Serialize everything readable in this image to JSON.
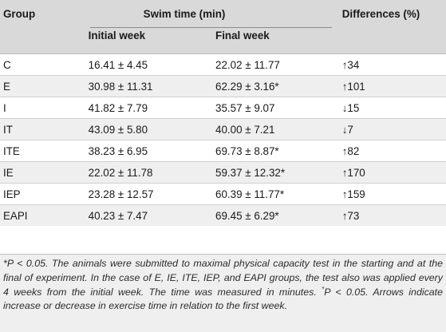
{
  "header": {
    "group": "Group",
    "swim_time": "Swim time (min)",
    "differences": "Differences (%)",
    "initial_week": "Initial week",
    "final_week": "Final week"
  },
  "rows": [
    {
      "group": "C",
      "initial": "16.41 ± 4.45",
      "final": "22.02 ± 11.77",
      "diff": "↑34"
    },
    {
      "group": "E",
      "initial": "30.98 ± 11.31",
      "final": "62.29 ± 3.16*",
      "diff": "↑101"
    },
    {
      "group": "I",
      "initial": "41.82 ± 7.79",
      "final": "35.57 ± 9.07",
      "diff": "↓15"
    },
    {
      "group": "IT",
      "initial": "43.09 ± 5.80",
      "final": "40.00 ± 7.21",
      "diff": "↓7"
    },
    {
      "group": "ITE",
      "initial": "38.23 ± 6.95",
      "final": "69.73 ± 8.87*",
      "diff": "↑82"
    },
    {
      "group": "IE",
      "initial": "22.02 ± 11.78",
      "final": "59.37 ± 12.32*",
      "diff": "↑170"
    },
    {
      "group": "IEP",
      "initial": "23.28 ± 12.57",
      "final": "60.39 ± 11.77*",
      "diff": "↑159"
    },
    {
      "group": "EAPI",
      "initial": "40.23 ± 7.47",
      "final": "69.45 ± 6.29*",
      "diff": "↑73"
    }
  ],
  "footnote": {
    "part1": "*P < 0.05. The animals were submitted to maximal physical capacity test in the starting and at the final of experiment. In the case of E, IE, ITE, IEP, and EAPI groups, the test also was applied every 4 weeks from the initial week. The time was measured in minutes. ",
    "sup": "*",
    "part2": "P < 0.05. Arrows indicate increase or decrease in exercise time in relation to the first week."
  }
}
